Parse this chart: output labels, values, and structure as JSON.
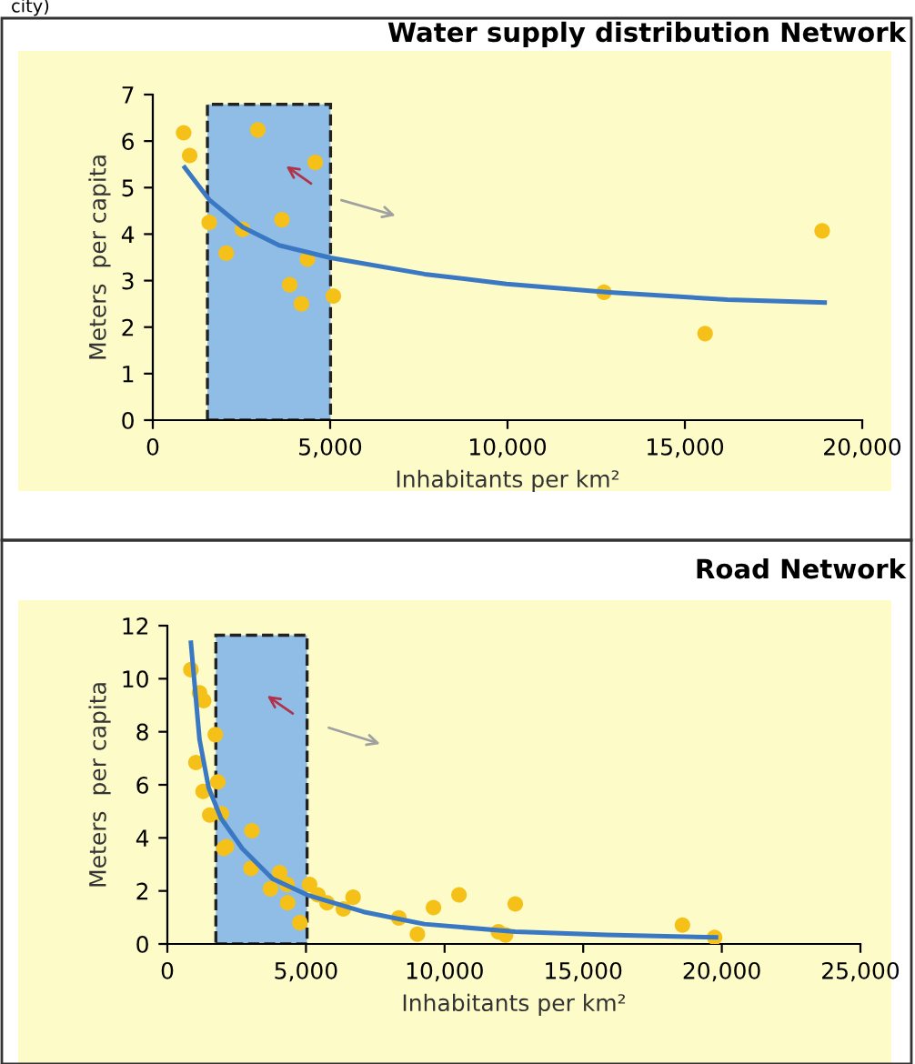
{
  "chart_data": [
    {
      "type": "scatter",
      "title": "Water supply distribution Network",
      "xlabel": "Inhabitants per km²",
      "ylabel": "Meters  per capita",
      "annotations": [
        "city)"
      ],
      "xlim": [
        0,
        20000
      ],
      "ylim": [
        0,
        7
      ],
      "xticks": [
        0,
        {
          "value": 5000,
          "label": "5,000"
        },
        {
          "value": 10000,
          "label": "10,000"
        },
        {
          "value": 15000,
          "label": "15,000"
        },
        {
          "value": 20000,
          "label": "20,000"
        }
      ],
      "yticks": [
        0,
        1,
        2,
        3,
        4,
        5,
        6,
        7
      ],
      "bands": [
        {
          "axis": "x",
          "from": 1540,
          "to": 5010,
          "color": "#8fbde6"
        }
      ],
      "series": [
        {
          "color": "#f5c118",
          "marker": "circle",
          "x": [
            870,
            1040,
            1590,
            2530,
            2070,
            2960,
            3640,
            4580,
            4360,
            3860,
            4190,
            5090,
            12720,
            15570,
            18870
          ],
          "values": [
            6.18,
            5.69,
            4.25,
            4.1,
            3.59,
            6.24,
            4.31,
            5.54,
            3.46,
            2.91,
            2.5,
            2.67,
            2.75,
            1.86,
            4.07
          ]
        },
        {
          "type": "line",
          "color": "#3a78c4",
          "x": [
            900,
            1590,
            2530,
            3560,
            5010,
            7660,
            9970,
            12790,
            16200,
            18940
          ],
          "values": [
            5.43,
            4.74,
            4.15,
            3.76,
            3.49,
            3.14,
            2.93,
            2.75,
            2.59,
            2.53
          ]
        }
      ]
    },
    {
      "type": "scatter",
      "title": "Road Network",
      "xlabel": "Inhabitants per km²",
      "ylabel": "Meters  per capita",
      "xlim": [
        0,
        25000
      ],
      "ylim": [
        0,
        12
      ],
      "xticks": [
        0,
        {
          "value": 5000,
          "label": "5,000"
        },
        {
          "value": 10000,
          "label": "10,000"
        },
        {
          "value": 15000,
          "label": "15,000"
        },
        {
          "value": 20000,
          "label": "20,000"
        },
        {
          "value": 25000,
          "label": "25,000"
        }
      ],
      "yticks": [
        0,
        2,
        4,
        6,
        8,
        10,
        12
      ],
      "bands": [
        {
          "axis": "x",
          "from": 1750,
          "to": 5040,
          "color": "#8fbde6"
        }
      ],
      "series": [
        {
          "color": "#f5c118",
          "marker": "circle",
          "x": [
            850,
            1160,
            1310,
            1730,
            1030,
            1820,
            1290,
            1530,
            1950,
            2040,
            2130,
            3050,
            3020,
            4050,
            3720,
            4320,
            4340,
            4780,
            5130,
            5430,
            5760,
            6350,
            6700,
            8350,
            9020,
            9600,
            10520,
            11940,
            12200,
            12550,
            18580,
            19740
          ],
          "values": [
            10.34,
            9.47,
            9.17,
            7.89,
            6.84,
            6.11,
            5.75,
            4.86,
            4.91,
            3.6,
            3.67,
            4.27,
            2.85,
            2.69,
            2.08,
            2.24,
            1.55,
            0.8,
            2.24,
            1.85,
            1.55,
            1.32,
            1.76,
            0.98,
            0.37,
            1.37,
            1.85,
            0.46,
            0.34,
            1.51,
            0.71,
            0.25
          ]
        },
        {
          "type": "line",
          "color": "#3a78c4",
          "x": [
            850,
            1160,
            1490,
            1930,
            2700,
            3790,
            5040,
            7080,
            9270,
            12550,
            15840,
            19790
          ],
          "values": [
            11.36,
            7.71,
            5.89,
            4.75,
            3.6,
            2.46,
            1.85,
            1.21,
            0.75,
            0.46,
            0.34,
            0.25
          ]
        }
      ]
    }
  ]
}
